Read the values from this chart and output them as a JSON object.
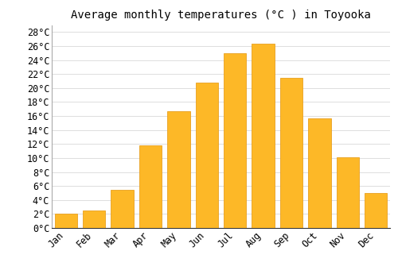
{
  "title": "Average monthly temperatures (°C ) in Toyooka",
  "months": [
    "Jan",
    "Feb",
    "Mar",
    "Apr",
    "May",
    "Jun",
    "Jul",
    "Aug",
    "Sep",
    "Oct",
    "Nov",
    "Dec"
  ],
  "values": [
    2.0,
    2.5,
    5.5,
    11.8,
    16.7,
    20.8,
    25.0,
    26.3,
    21.5,
    15.7,
    10.1,
    5.0
  ],
  "bar_color": "#FDB827",
  "bar_edge_color": "#E8A020",
  "background_color": "#FFFFFF",
  "grid_color": "#DDDDDD",
  "ylim": [
    0,
    29
  ],
  "ytick_step": 2,
  "title_fontsize": 10,
  "tick_fontsize": 8.5,
  "font_family": "monospace"
}
